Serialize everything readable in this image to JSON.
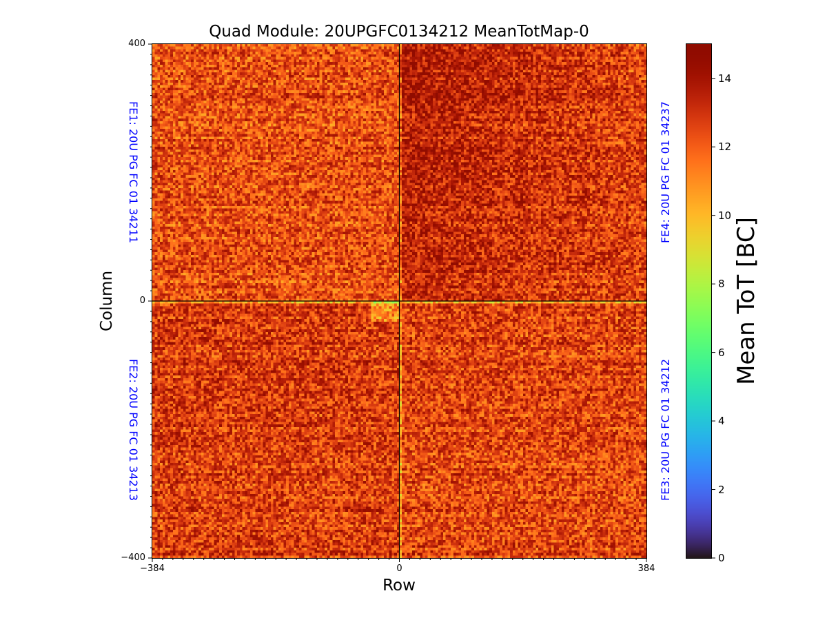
{
  "chart_data": {
    "type": "heatmap",
    "title": "Quad Module: 20UPGFC0134212 MeanTotMap-0",
    "xlabel": "Row",
    "ylabel": "Column",
    "xlim": [
      -384,
      384
    ],
    "ylim": [
      -400,
      400
    ],
    "x_ticks": [
      "−384",
      "0",
      "384"
    ],
    "y_ticks": [
      "400",
      "0",
      "−400"
    ],
    "colorbar": {
      "label": "Mean ToT [BC]",
      "range": [
        0,
        15
      ],
      "ticks": [
        "0",
        "2",
        "4",
        "6",
        "8",
        "10",
        "12",
        "14"
      ],
      "colormap": "turbo"
    },
    "quadrants": [
      {
        "name": "FE1",
        "label": "FE1: 20U PG FC 01 34211",
        "position": "top-left",
        "typical_value": 12.3
      },
      {
        "name": "FE4",
        "label": "FE4: 20U PG FC 01 34237",
        "position": "top-right",
        "typical_value": 13.2
      },
      {
        "name": "FE2",
        "label": "FE2: 20U PG FC 01 34213",
        "position": "bottom-left",
        "typical_value": 12.8
      },
      {
        "name": "FE3",
        "label": "FE3: 20U PG FC 01 34212",
        "position": "bottom-right",
        "typical_value": 12.6
      }
    ],
    "label_color": "#0000ff",
    "grid": false
  }
}
